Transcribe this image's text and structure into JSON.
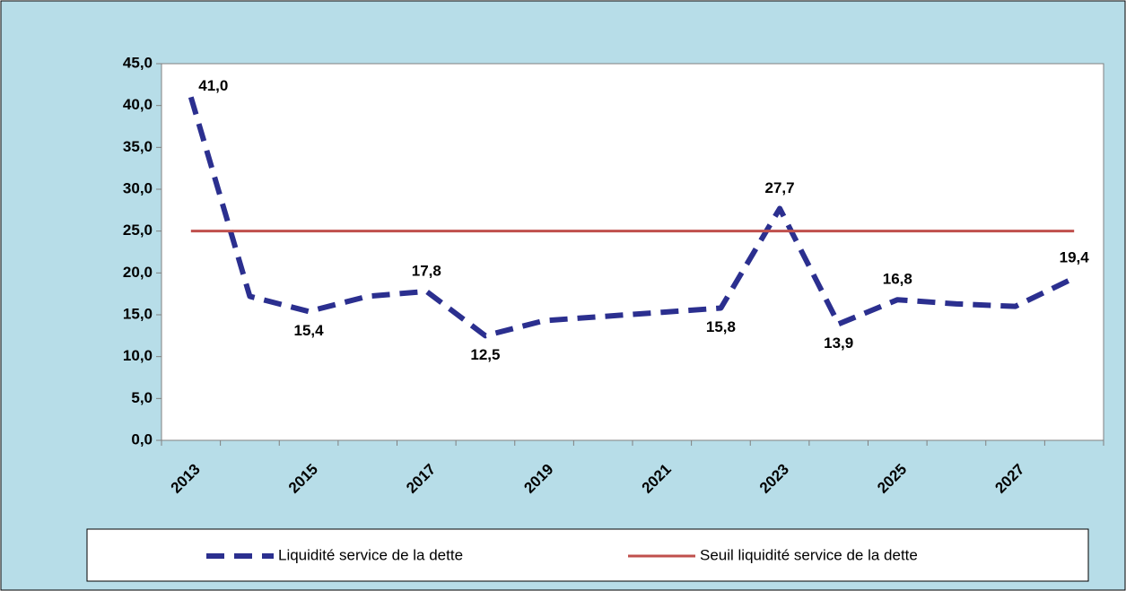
{
  "chart_data": {
    "type": "line",
    "categories": [
      "2013",
      null,
      "2015",
      null,
      "2017",
      null,
      "2019",
      null,
      "2021",
      null,
      "2023",
      null,
      "2025",
      null,
      "2027",
      null
    ],
    "series": [
      {
        "name": "Liquidité service de la dette",
        "color": "#2b2f8f",
        "dashed": true,
        "values": [
          41.0,
          17.2,
          15.4,
          17.2,
          17.8,
          12.5,
          14.3,
          14.8,
          15.3,
          15.8,
          27.7,
          13.9,
          16.8,
          16.3,
          16.0,
          19.4
        ],
        "value_labels": [
          "41,0",
          null,
          "15,4",
          null,
          "17,8",
          "12,5",
          null,
          null,
          null,
          "15,8",
          "27,7",
          "13,9",
          "16,8",
          null,
          null,
          "19,4"
        ]
      },
      {
        "name": "Seuil liquidité service de la dette",
        "color": "#c0504d",
        "dashed": false,
        "values": [
          25,
          25,
          25,
          25,
          25,
          25,
          25,
          25,
          25,
          25,
          25,
          25,
          25,
          25,
          25,
          25
        ]
      }
    ],
    "ylim": [
      0,
      45
    ],
    "yticks": [
      {
        "value": 0,
        "label": "0,0"
      },
      {
        "value": 5,
        "label": "5,0"
      },
      {
        "value": 10,
        "label": "10,0"
      },
      {
        "value": 15,
        "label": "15,0"
      },
      {
        "value": 20,
        "label": "20,0"
      },
      {
        "value": 25,
        "label": "25,0"
      },
      {
        "value": 30,
        "label": "30,0"
      },
      {
        "value": 35,
        "label": "35,0"
      },
      {
        "value": 40,
        "label": "40,0"
      },
      {
        "value": 45,
        "label": "45,0"
      }
    ],
    "legend": "bottom"
  }
}
